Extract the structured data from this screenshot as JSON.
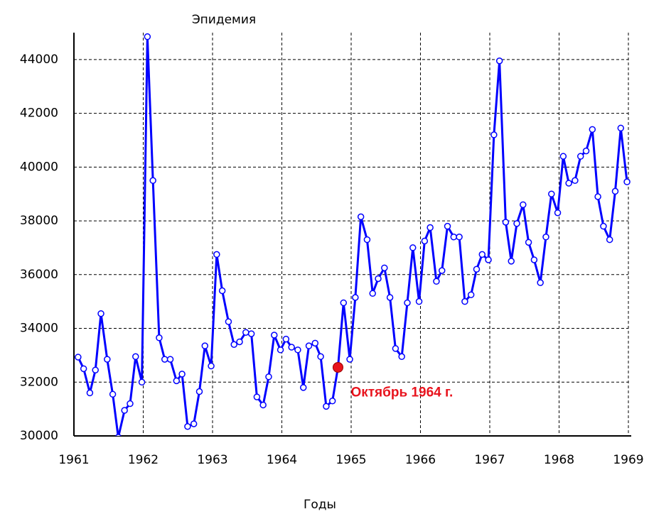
{
  "chart_data": {
    "type": "line",
    "title": "Эпидемия",
    "x_label": "Годы",
    "xlim": [
      1961,
      1969
    ],
    "xticks": [
      1961,
      1962,
      1963,
      1964,
      1965,
      1966,
      1967,
      1968,
      1969
    ],
    "ylim": [
      30000,
      45000
    ],
    "yticks": [
      30000,
      32000,
      34000,
      36000,
      38000,
      40000,
      42000,
      44000
    ],
    "grid": true,
    "x": [
      1961.06,
      1961.14,
      1961.23,
      1961.31,
      1961.39,
      1961.48,
      1961.56,
      1961.64,
      1961.73,
      1961.81,
      1961.89,
      1961.98,
      1962.06,
      1962.14,
      1962.23,
      1962.31,
      1962.39,
      1962.48,
      1962.56,
      1962.64,
      1962.73,
      1962.81,
      1962.89,
      1962.98,
      1963.06,
      1963.14,
      1963.23,
      1963.31,
      1963.39,
      1963.48,
      1963.56,
      1963.64,
      1963.73,
      1963.81,
      1963.89,
      1963.98,
      1964.06,
      1964.14,
      1964.23,
      1964.31,
      1964.39,
      1964.48,
      1964.56,
      1964.64,
      1964.73,
      1964.81,
      1964.89,
      1964.98,
      1965.06,
      1965.14,
      1965.23,
      1965.31,
      1965.39,
      1965.48,
      1965.56,
      1965.64,
      1965.73,
      1965.81,
      1965.89,
      1965.98,
      1966.06,
      1966.14,
      1966.23,
      1966.31,
      1966.39,
      1966.48,
      1966.56,
      1966.64,
      1966.73,
      1966.81,
      1966.89,
      1966.98,
      1967.06,
      1967.14,
      1967.23,
      1967.31,
      1967.39,
      1967.48,
      1967.56,
      1967.64,
      1967.73,
      1967.81,
      1967.89,
      1967.98,
      1968.06,
      1968.14,
      1968.23,
      1968.31,
      1968.39,
      1968.48,
      1968.56,
      1968.64,
      1968.73,
      1968.81,
      1968.89,
      1968.98
    ],
    "series": [
      {
        "name": "Эпидемия",
        "color": "#0000ff",
        "values": [
          32930,
          32500,
          31600,
          32450,
          34550,
          32850,
          31550,
          29950,
          30950,
          31200,
          32950,
          32000,
          44850,
          39500,
          33650,
          32850,
          32850,
          32050,
          32300,
          30350,
          30450,
          31650,
          33350,
          32600,
          36750,
          35400,
          34250,
          33400,
          33500,
          33850,
          33800,
          31450,
          31150,
          32200,
          33750,
          33200,
          33600,
          33300,
          33200,
          31800,
          33350,
          33450,
          32950,
          31100,
          31300,
          32550,
          34950,
          32850,
          35150,
          38150,
          37300,
          35300,
          35850,
          36250,
          35150,
          33250,
          32950,
          34950,
          37000,
          35000,
          37250,
          37750,
          35750,
          36150,
          37800,
          37400,
          37400,
          35000,
          35250,
          36200,
          36750,
          36550,
          41200,
          43950,
          37950,
          36500,
          37900,
          38600,
          37200,
          36550,
          35700,
          37400,
          39000,
          38300,
          40400,
          39400,
          39500,
          40400,
          40600,
          41400,
          38900,
          37800,
          37300,
          39100,
          41450,
          39450
        ]
      }
    ],
    "annotations": [
      {
        "text": "Октябрь 1964 г.",
        "x": 1964.81,
        "y": 32550,
        "color": "#e8141e"
      }
    ]
  }
}
